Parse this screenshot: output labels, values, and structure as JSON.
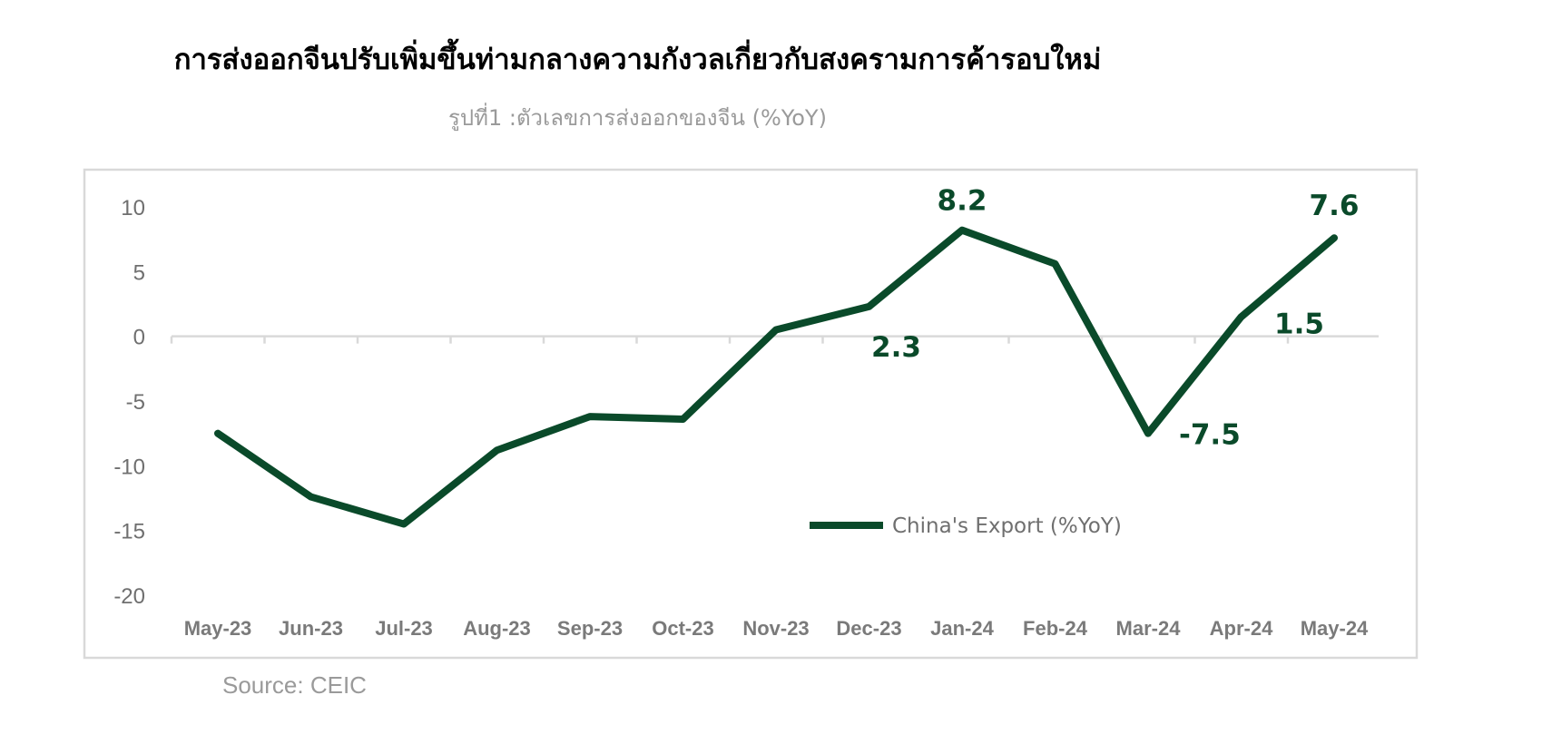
{
  "title": "การส่งออกจีนปรับเพิ่มขึ้นท่ามกลางความกังวลเกี่ยวกับสงครามการค้ารอบใหม่",
  "subtitle": "รูปที่1 :ตัวเลขการส่งออกของจีน (%YoY)",
  "source": "Source:  CEIC",
  "colors": {
    "line": "#0a4a2a",
    "axis": "#d9d9d9",
    "frame": "#d9d9d9"
  },
  "chart_data": {
    "type": "line",
    "categories": [
      "May-23",
      "Jun-23",
      "Jul-23",
      "Aug-23",
      "Sep-23",
      "Oct-23",
      "Nov-23",
      "Dec-23",
      "Jan-24",
      "Feb-24",
      "Mar-24",
      "Apr-24",
      "May-24"
    ],
    "series": [
      {
        "name": "China's Export (%YoY)",
        "values": [
          -7.5,
          -12.4,
          -14.5,
          -8.8,
          -6.2,
          -6.4,
          0.5,
          2.3,
          8.2,
          5.6,
          -7.5,
          1.5,
          7.6
        ]
      }
    ],
    "data_labels": [
      {
        "index": 7,
        "text": "2.3"
      },
      {
        "index": 8,
        "text": "8.2"
      },
      {
        "index": 10,
        "text": "-7.5"
      },
      {
        "index": 11,
        "text": "1.5"
      },
      {
        "index": 12,
        "text": "7.6"
      }
    ],
    "yticks": [
      10,
      5,
      0,
      -5,
      -10,
      -15,
      -20
    ],
    "ylim": [
      -20,
      10
    ],
    "xlabel": "",
    "ylabel": "",
    "grid": false,
    "legend": "center"
  }
}
